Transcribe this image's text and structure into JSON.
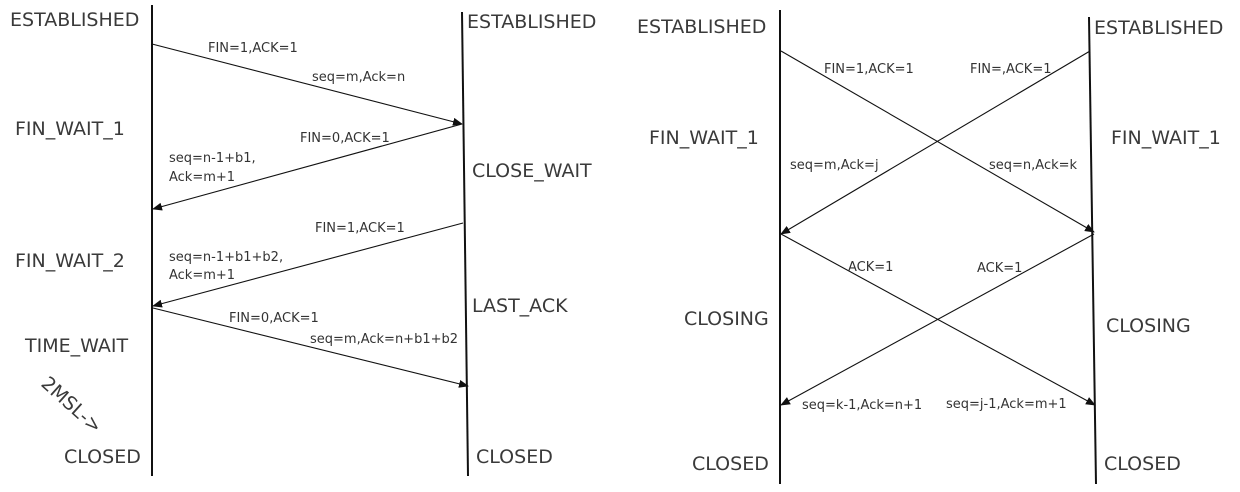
{
  "left": {
    "client_states": {
      "established": "ESTABLISHED",
      "fin_wait_1": "FIN_WAIT_1",
      "fin_wait_2": "FIN_WAIT_2",
      "time_wait": "TIME_WAIT",
      "timer": "2MSL->",
      "closed": "CLOSED"
    },
    "server_states": {
      "established": "ESTABLISHED",
      "close_wait": "CLOSE_WAIT",
      "last_ack": "LAST_ACK",
      "closed": "CLOSED"
    },
    "messages": {
      "m1_flags": "FIN=1,ACK=1",
      "m1_seq": "seq=m,Ack=n",
      "m2_flags": "FIN=0,ACK=1",
      "m2_seq_line1": "seq=n-1+b1,",
      "m2_seq_line2": "Ack=m+1",
      "m3_flags": "FIN=1,ACK=1",
      "m3_seq_line1": "seq=n-1+b1+b2,",
      "m3_seq_line2": "Ack=m+1",
      "m4_flags": "FIN=0,ACK=1",
      "m4_seq": "seq=m,Ack=n+b1+b2"
    }
  },
  "right": {
    "client_states": {
      "established": "ESTABLISHED",
      "fin_wait_1": "FIN_WAIT_1",
      "closing": "CLOSING",
      "closed": "CLOSED"
    },
    "server_states": {
      "established": "ESTABLISHED",
      "fin_wait_1": "FIN_WAIT_1",
      "closing": "CLOSING",
      "closed": "CLOSED"
    },
    "messages": {
      "fin_a_flags": "FIN=1,ACK=1",
      "fin_b_flags": "FIN=,ACK=1",
      "fin_a_seq": "seq=n,Ack=k",
      "fin_b_seq": "seq=m,Ack=j",
      "ack_a_flags": "ACK=1",
      "ack_b_flags": "ACK=1",
      "ack_a_seq": "seq=j-1,Ack=m+1",
      "ack_b_seq": "seq=k-1,Ack=n+1"
    }
  }
}
